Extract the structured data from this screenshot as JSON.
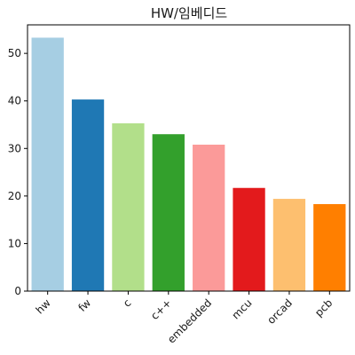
{
  "chart_data": {
    "type": "bar",
    "title": "HW/임베디드",
    "xlabel": "",
    "ylabel": "",
    "categories": [
      "hw",
      "fw",
      "c",
      "c++",
      "embedded",
      "mcu",
      "orcad",
      "pcb"
    ],
    "values": [
      53.3,
      40.3,
      35.3,
      33.0,
      30.8,
      21.7,
      19.4,
      18.3
    ],
    "colors": [
      "#a6cee3",
      "#1f78b4",
      "#b2df8a",
      "#33a02c",
      "#fb9a99",
      "#e31a1c",
      "#fdbf6f",
      "#ff7f00"
    ],
    "ylim": [
      0,
      56
    ],
    "yticks": [
      0,
      10,
      20,
      30,
      40,
      50
    ],
    "grid": false,
    "legend": "none"
  }
}
